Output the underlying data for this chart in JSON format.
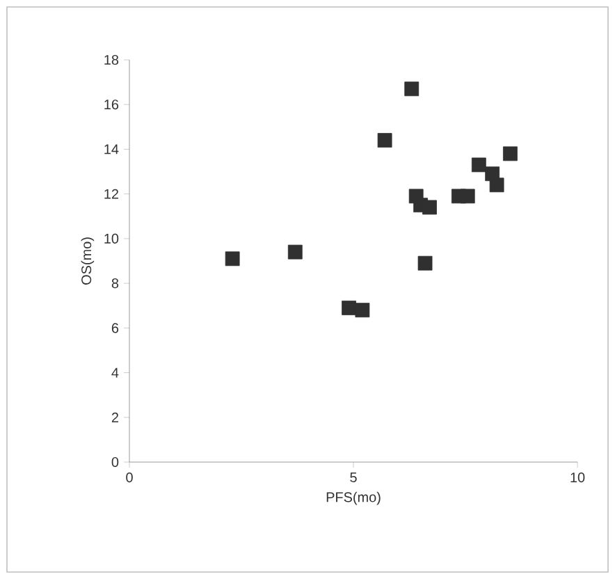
{
  "chart_data": {
    "type": "scatter",
    "xlabel": "PFS(mo)",
    "ylabel": "OS(mo)",
    "x": [
      2.3,
      3.7,
      4.9,
      5.2,
      5.7,
      6.3,
      6.4,
      6.5,
      6.7,
      6.6,
      7.35,
      7.55,
      7.8,
      8.1,
      8.2,
      8.5
    ],
    "series": [
      {
        "color": "#2f302f",
        "values": [
          9.1,
          9.4,
          6.9,
          6.8,
          14.4,
          16.7,
          11.9,
          11.5,
          11.4,
          8.9,
          11.9,
          11.9,
          13.3,
          12.9,
          12.4,
          13.8
        ]
      }
    ],
    "marker": "square",
    "xlim": [
      0,
      10
    ],
    "ylim": [
      0,
      18
    ],
    "xticks": [
      0,
      5,
      10
    ],
    "yticks": [
      0,
      2,
      4,
      6,
      8,
      10,
      12,
      14,
      16,
      18
    ],
    "grid": false,
    "legend": false
  }
}
